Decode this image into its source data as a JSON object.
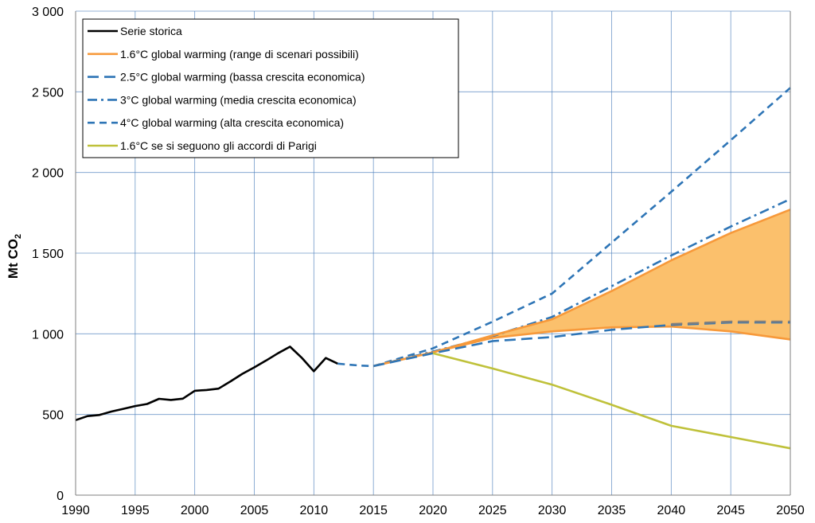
{
  "chart_data": {
    "type": "line",
    "title": "",
    "xlabel": "",
    "ylabel": "Mt CO",
    "ylabel_subscript": "2",
    "xlim": [
      1990,
      2050
    ],
    "ylim": [
      0,
      3000
    ],
    "x_ticks": [
      {
        "value": 1990,
        "label": "1990"
      },
      {
        "value": 1995,
        "label": "1995"
      },
      {
        "value": 2000,
        "label": "2000"
      },
      {
        "value": 2005,
        "label": "2005"
      },
      {
        "value": 2010,
        "label": "2010"
      },
      {
        "value": 2015,
        "label": "2015"
      },
      {
        "value": 2020,
        "label": "2020"
      },
      {
        "value": 2025,
        "label": "2025"
      },
      {
        "value": 2030,
        "label": "2030"
      },
      {
        "value": 2035,
        "label": "2035"
      },
      {
        "value": 2040,
        "label": "2040"
      },
      {
        "value": 2045,
        "label": "2045"
      },
      {
        "value": 2050,
        "label": "2050"
      }
    ],
    "y_ticks": [
      {
        "value": 0,
        "label": "0"
      },
      {
        "value": 500,
        "label": "500"
      },
      {
        "value": 1000,
        "label": "1 000"
      },
      {
        "value": 1500,
        "label": "1 500"
      },
      {
        "value": 2000,
        "label": "2 000"
      },
      {
        "value": 2500,
        "label": "2 500"
      },
      {
        "value": 3000,
        "label": "3 000"
      }
    ],
    "grid": true,
    "legend_position": "top-left",
    "colors": {
      "black": "#000000",
      "orange": "#f7993a",
      "band": "#fbc06c",
      "blue": "#2e75b6",
      "olive": "#bfc13a",
      "gray": "#7f7f7f"
    },
    "legend": [
      {
        "key": "storica",
        "label": "Serie storica"
      },
      {
        "key": "band",
        "label": "1.6°C global warming  (range di scenari possibili)"
      },
      {
        "key": "s25",
        "label": "2.5°C global warming  (bassa crescita economica)"
      },
      {
        "key": "s3",
        "label": "3°C global warming  (media crescita economica)"
      },
      {
        "key": "s4",
        "label": "4°C global warming  (alta crescita economica)"
      },
      {
        "key": "parigi",
        "label": "1.6°C  se si seguono gli accordi di Parigi"
      }
    ],
    "series": [
      {
        "key": "storica",
        "name": "Serie storica",
        "style": "solid",
        "color": "#000000",
        "x": [
          1990,
          1991,
          1992,
          1993,
          1994,
          1995,
          1996,
          1997,
          1998,
          1999,
          2000,
          2001,
          2002,
          2003,
          2004,
          2005,
          2006,
          2007,
          2008,
          2009,
          2010,
          2011,
          2012
        ],
        "y": [
          465,
          490,
          497,
          518,
          535,
          552,
          565,
          597,
          590,
          598,
          647,
          652,
          660,
          705,
          752,
          792,
          835,
          880,
          920,
          850,
          768,
          850,
          815
        ]
      },
      {
        "key": "storica_blue",
        "name": "Serie storica (recente)",
        "style": "dash",
        "color": "#2e75b6",
        "x": [
          2012,
          2013,
          2014,
          2015
        ],
        "y": [
          815,
          808,
          803,
          800
        ]
      },
      {
        "key": "band_upper",
        "name": "1.6°C global warming – upper",
        "style": "solid",
        "color": "#f7993a",
        "x": [
          2015,
          2020,
          2025,
          2030,
          2035,
          2040,
          2045,
          2050
        ],
        "y": [
          800,
          885,
          990,
          1090,
          1265,
          1455,
          1625,
          1770
        ]
      },
      {
        "key": "band_lower",
        "name": "1.6°C global warming – lower",
        "style": "solid",
        "color": "#f7993a",
        "x": [
          2015,
          2020,
          2025,
          2030,
          2035,
          2040,
          2045,
          2050
        ],
        "y": [
          800,
          885,
          975,
          1015,
          1040,
          1045,
          1015,
          965
        ]
      },
      {
        "key": "s25",
        "name": "2.5°C global warming",
        "style": "longdash",
        "color": "#2e75b6",
        "x": [
          2015,
          2020,
          2025,
          2030,
          2035,
          2040,
          2045,
          2050
        ],
        "y": [
          800,
          880,
          955,
          980,
          1025,
          1055,
          1070,
          1070
        ]
      },
      {
        "key": "s25_tail",
        "name": "2.5°C global warming (coda)",
        "style": "longdash",
        "color": "#7f7f7f",
        "x": [
          2040,
          2045,
          2050
        ],
        "y": [
          1060,
          1075,
          1075
        ]
      },
      {
        "key": "s3",
        "name": "3°C global warming",
        "style": "dashdot",
        "color": "#2e75b6",
        "x": [
          2015,
          2020,
          2025,
          2030,
          2035,
          2040,
          2045,
          2050
        ],
        "y": [
          800,
          890,
          985,
          1105,
          1295,
          1485,
          1665,
          1835
        ]
      },
      {
        "key": "s4",
        "name": "4°C global warming",
        "style": "dash",
        "color": "#2e75b6",
        "x": [
          2015,
          2020,
          2025,
          2030,
          2035,
          2040,
          2045,
          2050
        ],
        "y": [
          800,
          910,
          1075,
          1250,
          1565,
          1880,
          2200,
          2525
        ]
      },
      {
        "key": "parigi",
        "name": "1.6°C se si seguono gli accordi di Parigi",
        "style": "solid",
        "color": "#bfc13a",
        "x": [
          2020,
          2025,
          2030,
          2035,
          2040,
          2045,
          2050
        ],
        "y": [
          880,
          785,
          685,
          560,
          430,
          360,
          290
        ]
      }
    ]
  }
}
